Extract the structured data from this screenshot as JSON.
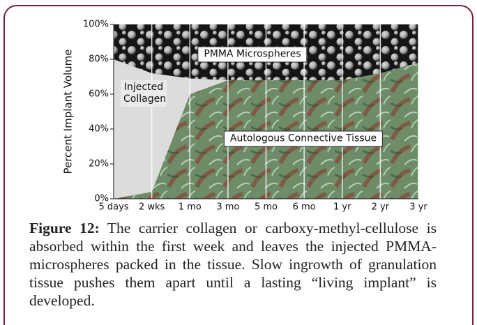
{
  "chart_data": {
    "type": "area",
    "categories": [
      "5 days",
      "2 wks",
      "1 mo",
      "3 mo",
      "5 mo",
      "6 mo",
      "1 yr",
      "2 yr",
      "3 yr"
    ],
    "series": [
      {
        "name": "Autologous Connective Tissue",
        "color": "#6e8c68",
        "values": [
          0,
          4,
          60,
          68,
          68,
          68,
          68,
          72,
          78
        ]
      },
      {
        "name": "Injected Collagen",
        "color": "#dcdcdc",
        "values": [
          80,
          68,
          9,
          0,
          0,
          0,
          0,
          0,
          0
        ]
      },
      {
        "name": "PMMA Microspheres",
        "color": "#151515",
        "values": [
          20,
          28,
          31,
          32,
          32,
          32,
          32,
          28,
          22
        ]
      }
    ],
    "stacked": true,
    "y_label": "Percent Implant Volume",
    "ylim": [
      0,
      100
    ],
    "yticks": [
      {
        "value": 0,
        "label": "0%"
      },
      {
        "value": 20,
        "label": "20%"
      },
      {
        "value": 40,
        "label": "40%"
      },
      {
        "value": 60,
        "label": "60%"
      },
      {
        "value": 80,
        "label": "80%"
      },
      {
        "value": 100,
        "label": "100%"
      }
    ]
  },
  "caption": {
    "label": "Figure 12:",
    "text": "The carrier collagen or carboxy-methyl-cellulose is absorbed within the first week and leaves the injected PMMA-microspheres packed in the tissue. Slow ingrowth of granulation tissue pushes them apart until a lasting “living implant” is developed."
  }
}
